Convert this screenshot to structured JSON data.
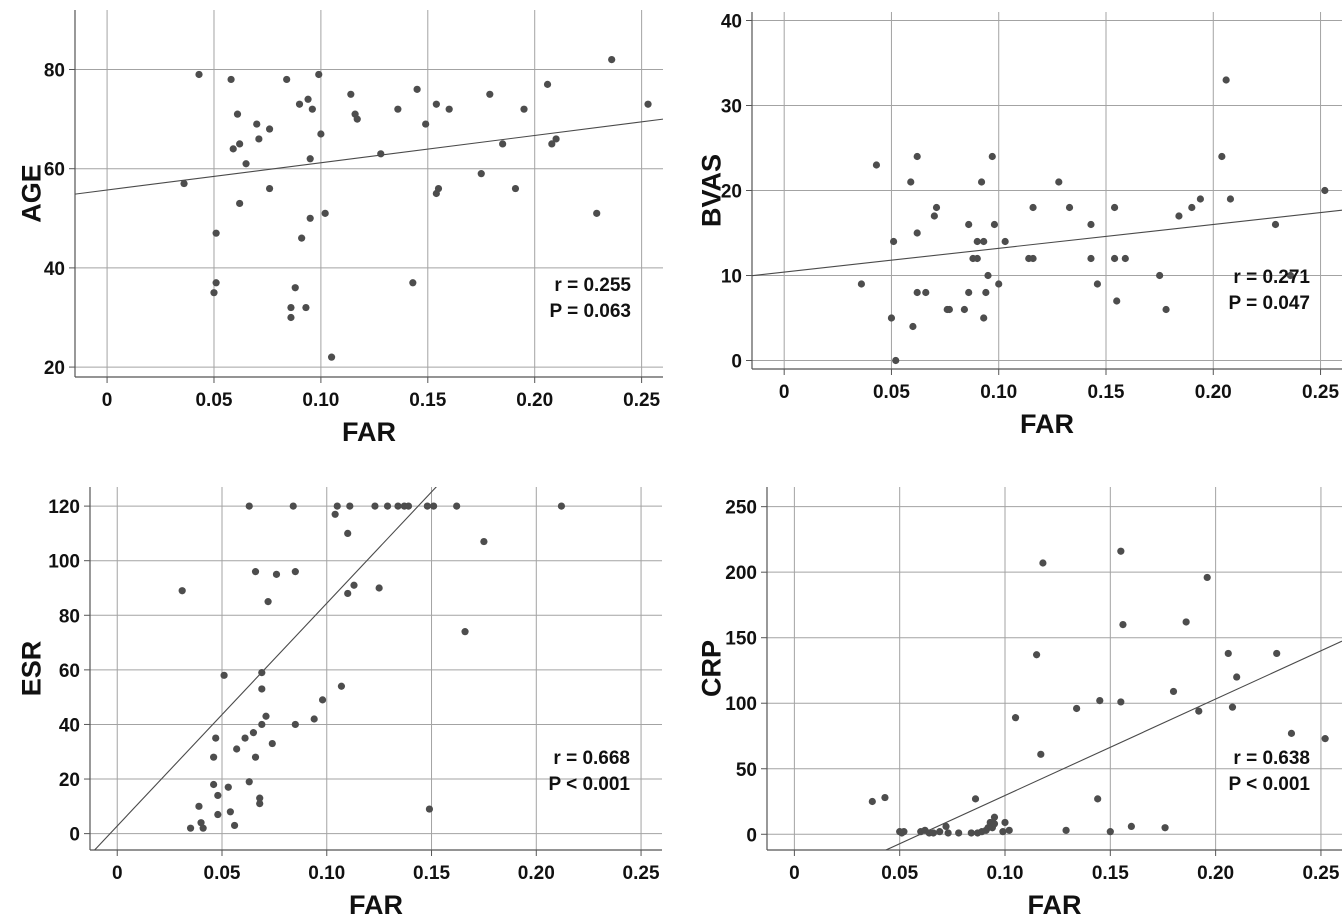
{
  "chart_data": [
    {
      "type": "scatter",
      "xlabel": "FAR",
      "ylabel": "AGE",
      "xlim": [
        -0.015,
        0.26
      ],
      "ylim": [
        18,
        92
      ],
      "xticks": [
        0,
        0.05,
        0.1,
        0.15,
        0.2,
        0.25
      ],
      "xtick_labels": [
        "0",
        "0.05",
        "0.10",
        "0.15",
        "0.20",
        "0.25"
      ],
      "yticks": [
        20,
        40,
        60,
        80
      ],
      "ytick_labels": [
        "20",
        "40",
        "60",
        "80"
      ],
      "grid": true,
      "fit_line": {
        "intercept": 55.7,
        "slope": 55.0
      },
      "stats": [
        "r = 0.255",
        "P = 0.063"
      ],
      "points": [
        [
          0.036,
          57
        ],
        [
          0.043,
          79
        ],
        [
          0.05,
          35
        ],
        [
          0.051,
          47
        ],
        [
          0.051,
          37
        ],
        [
          0.058,
          78
        ],
        [
          0.059,
          64
        ],
        [
          0.061,
          71
        ],
        [
          0.062,
          65
        ],
        [
          0.062,
          53
        ],
        [
          0.065,
          61
        ],
        [
          0.07,
          69
        ],
        [
          0.071,
          66
        ],
        [
          0.076,
          56
        ],
        [
          0.076,
          68
        ],
        [
          0.084,
          78
        ],
        [
          0.086,
          32
        ],
        [
          0.086,
          30
        ],
        [
          0.088,
          36
        ],
        [
          0.09,
          73
        ],
        [
          0.091,
          46
        ],
        [
          0.093,
          32
        ],
        [
          0.094,
          74
        ],
        [
          0.095,
          62
        ],
        [
          0.095,
          50
        ],
        [
          0.096,
          72
        ],
        [
          0.099,
          79
        ],
        [
          0.1,
          67
        ],
        [
          0.102,
          51
        ],
        [
          0.105,
          22
        ],
        [
          0.114,
          75
        ],
        [
          0.116,
          71
        ],
        [
          0.117,
          70
        ],
        [
          0.128,
          63
        ],
        [
          0.136,
          72
        ],
        [
          0.143,
          37
        ],
        [
          0.145,
          76
        ],
        [
          0.149,
          69
        ],
        [
          0.154,
          55
        ],
        [
          0.154,
          73
        ],
        [
          0.155,
          56
        ],
        [
          0.16,
          72
        ],
        [
          0.175,
          59
        ],
        [
          0.179,
          75
        ],
        [
          0.185,
          65
        ],
        [
          0.191,
          56
        ],
        [
          0.195,
          72
        ],
        [
          0.206,
          77
        ],
        [
          0.208,
          65
        ],
        [
          0.21,
          66
        ],
        [
          0.229,
          51
        ],
        [
          0.236,
          82
        ],
        [
          0.253,
          73
        ]
      ]
    },
    {
      "type": "scatter",
      "xlabel": "FAR",
      "ylabel": "BVAS",
      "xlim": [
        -0.015,
        0.26
      ],
      "ylim": [
        -1,
        41
      ],
      "xticks": [
        0,
        0.05,
        0.1,
        0.15,
        0.2,
        0.25
      ],
      "xtick_labels": [
        "0",
        "0.05",
        "0.10",
        "0.15",
        "0.20",
        "0.25"
      ],
      "yticks": [
        0,
        10,
        20,
        30,
        40
      ],
      "ytick_labels": [
        "0",
        "10",
        "20",
        "30",
        "40"
      ],
      "grid": true,
      "fit_line": {
        "intercept": 10.4,
        "slope": 28.0
      },
      "stats": [
        "r = 0.271",
        "P = 0.047"
      ],
      "points": [
        [
          0.036,
          9
        ],
        [
          0.043,
          23
        ],
        [
          0.05,
          5
        ],
        [
          0.051,
          14
        ],
        [
          0.052,
          0
        ],
        [
          0.059,
          21
        ],
        [
          0.06,
          4
        ],
        [
          0.062,
          24
        ],
        [
          0.062,
          15
        ],
        [
          0.062,
          8
        ],
        [
          0.066,
          8
        ],
        [
          0.07,
          17
        ],
        [
          0.071,
          18
        ],
        [
          0.076,
          6
        ],
        [
          0.077,
          6
        ],
        [
          0.084,
          6
        ],
        [
          0.086,
          16
        ],
        [
          0.086,
          8
        ],
        [
          0.088,
          12
        ],
        [
          0.09,
          12
        ],
        [
          0.09,
          14
        ],
        [
          0.092,
          21
        ],
        [
          0.093,
          14
        ],
        [
          0.093,
          5
        ],
        [
          0.094,
          8
        ],
        [
          0.095,
          10
        ],
        [
          0.097,
          24
        ],
        [
          0.098,
          16
        ],
        [
          0.1,
          9
        ],
        [
          0.103,
          14
        ],
        [
          0.114,
          12
        ],
        [
          0.116,
          12
        ],
        [
          0.116,
          18
        ],
        [
          0.128,
          21
        ],
        [
          0.133,
          18
        ],
        [
          0.143,
          16
        ],
        [
          0.143,
          12
        ],
        [
          0.146,
          9
        ],
        [
          0.154,
          18
        ],
        [
          0.154,
          12
        ],
        [
          0.155,
          7
        ],
        [
          0.159,
          12
        ],
        [
          0.175,
          10
        ],
        [
          0.178,
          6
        ],
        [
          0.184,
          17
        ],
        [
          0.19,
          18
        ],
        [
          0.194,
          19
        ],
        [
          0.204,
          24
        ],
        [
          0.206,
          33
        ],
        [
          0.208,
          19
        ],
        [
          0.229,
          16
        ],
        [
          0.236,
          10
        ],
        [
          0.252,
          20
        ]
      ]
    },
    {
      "type": "scatter",
      "xlabel": "FAR",
      "ylabel": "ESR",
      "xlim": [
        -0.013,
        0.26
      ],
      "ylim": [
        -6,
        127
      ],
      "xticks": [
        0,
        0.05,
        0.1,
        0.15,
        0.2,
        0.25
      ],
      "xtick_labels": [
        "0",
        "0.05",
        "0.10",
        "0.15",
        "0.20",
        "0.25"
      ],
      "yticks": [
        0,
        20,
        40,
        60,
        80,
        100,
        120
      ],
      "ytick_labels": [
        "0",
        "20",
        "40",
        "60",
        "80",
        "100",
        "120"
      ],
      "grid": true,
      "fit_line": {
        "intercept": 2.8,
        "slope": 816.0
      },
      "stats": [
        "r = 0.668",
        "P < 0.001"
      ],
      "points": [
        [
          0.031,
          89
        ],
        [
          0.035,
          2
        ],
        [
          0.039,
          10
        ],
        [
          0.04,
          4
        ],
        [
          0.041,
          2
        ],
        [
          0.046,
          18
        ],
        [
          0.046,
          28
        ],
        [
          0.047,
          35
        ],
        [
          0.048,
          14
        ],
        [
          0.048,
          7
        ],
        [
          0.051,
          58
        ],
        [
          0.053,
          17
        ],
        [
          0.054,
          8
        ],
        [
          0.056,
          3
        ],
        [
          0.057,
          31
        ],
        [
          0.061,
          35
        ],
        [
          0.063,
          19
        ],
        [
          0.063,
          120
        ],
        [
          0.065,
          37
        ],
        [
          0.066,
          28
        ],
        [
          0.066,
          96
        ],
        [
          0.068,
          11
        ],
        [
          0.068,
          13
        ],
        [
          0.069,
          40
        ],
        [
          0.069,
          59
        ],
        [
          0.069,
          53
        ],
        [
          0.071,
          43
        ],
        [
          0.072,
          85
        ],
        [
          0.074,
          33
        ],
        [
          0.076,
          95
        ],
        [
          0.084,
          120
        ],
        [
          0.085,
          96
        ],
        [
          0.085,
          40
        ],
        [
          0.094,
          42
        ],
        [
          0.098,
          49
        ],
        [
          0.104,
          117
        ],
        [
          0.105,
          120
        ],
        [
          0.107,
          54
        ],
        [
          0.11,
          88
        ],
        [
          0.11,
          110
        ],
        [
          0.111,
          120
        ],
        [
          0.113,
          91
        ],
        [
          0.123,
          120
        ],
        [
          0.125,
          90
        ],
        [
          0.129,
          120
        ],
        [
          0.134,
          120
        ],
        [
          0.137,
          120
        ],
        [
          0.139,
          120
        ],
        [
          0.148,
          120
        ],
        [
          0.149,
          9
        ],
        [
          0.151,
          120
        ],
        [
          0.162,
          120
        ],
        [
          0.166,
          74
        ],
        [
          0.175,
          107
        ],
        [
          0.212,
          120
        ]
      ]
    },
    {
      "type": "scatter",
      "xlabel": "FAR",
      "ylabel": "CRP",
      "xlim": [
        -0.013,
        0.26
      ],
      "ylim": [
        -12,
        265
      ],
      "xticks": [
        0,
        0.05,
        0.1,
        0.15,
        0.2,
        0.25
      ],
      "xtick_labels": [
        "0",
        "0.05",
        "0.10",
        "0.15",
        "0.20",
        "0.25"
      ],
      "yticks": [
        0,
        50,
        100,
        150,
        200,
        250
      ],
      "ytick_labels": [
        "0",
        "50",
        "100",
        "150",
        "200",
        "250"
      ],
      "grid": true,
      "fit_line": {
        "intercept": -44,
        "slope": 736
      },
      "stats": [
        "r = 0.638",
        "P < 0.001"
      ],
      "points": [
        [
          0.037,
          25
        ],
        [
          0.043,
          28
        ],
        [
          0.05,
          2
        ],
        [
          0.051,
          1
        ],
        [
          0.052,
          2
        ],
        [
          0.06,
          2
        ],
        [
          0.062,
          3
        ],
        [
          0.064,
          1
        ],
        [
          0.066,
          1
        ],
        [
          0.069,
          2
        ],
        [
          0.072,
          6
        ],
        [
          0.073,
          1
        ],
        [
          0.078,
          1
        ],
        [
          0.084,
          1
        ],
        [
          0.086,
          27
        ],
        [
          0.087,
          1
        ],
        [
          0.089,
          2
        ],
        [
          0.091,
          3
        ],
        [
          0.092,
          5
        ],
        [
          0.093,
          9
        ],
        [
          0.094,
          5
        ],
        [
          0.095,
          13
        ],
        [
          0.095,
          8
        ],
        [
          0.099,
          2
        ],
        [
          0.1,
          9
        ],
        [
          0.102,
          3
        ],
        [
          0.105,
          89
        ],
        [
          0.115,
          137
        ],
        [
          0.117,
          61
        ],
        [
          0.118,
          207
        ],
        [
          0.129,
          3
        ],
        [
          0.134,
          96
        ],
        [
          0.144,
          27
        ],
        [
          0.145,
          102
        ],
        [
          0.15,
          2
        ],
        [
          0.155,
          216
        ],
        [
          0.155,
          101
        ],
        [
          0.156,
          160
        ],
        [
          0.16,
          6
        ],
        [
          0.176,
          5
        ],
        [
          0.18,
          109
        ],
        [
          0.186,
          162
        ],
        [
          0.192,
          94
        ],
        [
          0.196,
          196
        ],
        [
          0.206,
          138
        ],
        [
          0.208,
          97
        ],
        [
          0.21,
          120
        ],
        [
          0.229,
          138
        ],
        [
          0.236,
          77
        ],
        [
          0.252,
          73
        ]
      ]
    }
  ]
}
